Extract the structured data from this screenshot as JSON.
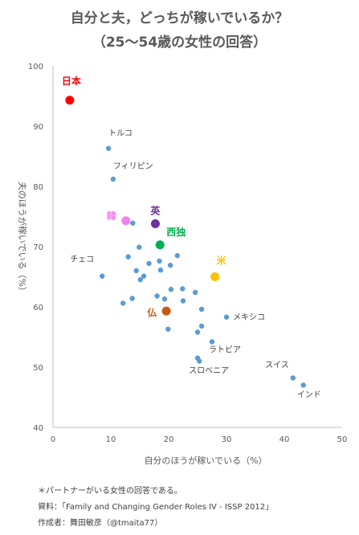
{
  "title": "自分と夫，どっちが稼いでいるか？",
  "subtitle": "（25～54歳の女性の回答）",
  "chart_data": {
    "type": "scatter",
    "title": "自分と夫，どっちが稼いでいるか？",
    "subtitle": "（25～54歳の女性の回答）",
    "xlabel": "自分のほうが稼いでいる（%）",
    "ylabel": "夫のほうが稼いでいる（%）",
    "xlim": [
      0,
      50
    ],
    "ylim": [
      40,
      100
    ],
    "xticks": [
      0,
      10,
      20,
      30,
      40,
      50
    ],
    "yticks": [
      40,
      50,
      60,
      70,
      80,
      90,
      100
    ],
    "grid": false,
    "default_color": "#5b9bd5",
    "points": [
      {
        "x": 2.9,
        "y": 94.3,
        "color": "#ff0000",
        "label": "日本",
        "highlight": true
      },
      {
        "x": 17.7,
        "y": 73.8,
        "color": "#7030a0",
        "label": "英",
        "highlight": true
      },
      {
        "x": 12.6,
        "y": 74.3,
        "color": "#ee82ee",
        "label": "韓",
        "highlight": true
      },
      {
        "x": 18.5,
        "y": 70.3,
        "color": "#00b050",
        "label": "西独",
        "highlight": true
      },
      {
        "x": 28.0,
        "y": 65.0,
        "color": "#ffc000",
        "label": "米",
        "highlight": true
      },
      {
        "x": 19.6,
        "y": 59.3,
        "color": "#c55a11",
        "label": "仏",
        "highlight": true
      },
      {
        "x": 9.6,
        "y": 86.3,
        "label": "トルコ"
      },
      {
        "x": 10.4,
        "y": 81.2,
        "label": "フィリピン"
      },
      {
        "x": 8.5,
        "y": 65.1,
        "label": "チェコ"
      },
      {
        "x": 30.0,
        "y": 58.3,
        "label": "メキシコ"
      },
      {
        "x": 27.5,
        "y": 54.2,
        "label": "ラトビア"
      },
      {
        "x": 25.3,
        "y": 51.0,
        "label": "スロベニア"
      },
      {
        "x": 41.5,
        "y": 48.2,
        "label": "スイス"
      },
      {
        "x": 43.3,
        "y": 47.0,
        "label": "インド"
      },
      {
        "x": 13.8,
        "y": 73.9
      },
      {
        "x": 14.9,
        "y": 69.9
      },
      {
        "x": 13.0,
        "y": 68.3
      },
      {
        "x": 21.5,
        "y": 68.5
      },
      {
        "x": 16.6,
        "y": 67.2
      },
      {
        "x": 18.4,
        "y": 67.6
      },
      {
        "x": 20.3,
        "y": 66.9
      },
      {
        "x": 14.4,
        "y": 66.0
      },
      {
        "x": 18.6,
        "y": 66.1
      },
      {
        "x": 15.7,
        "y": 65.1
      },
      {
        "x": 15.1,
        "y": 64.5
      },
      {
        "x": 20.4,
        "y": 62.9
      },
      {
        "x": 22.4,
        "y": 63.0
      },
      {
        "x": 24.6,
        "y": 62.4
      },
      {
        "x": 18.0,
        "y": 61.8
      },
      {
        "x": 19.3,
        "y": 61.3
      },
      {
        "x": 13.7,
        "y": 61.4
      },
      {
        "x": 22.5,
        "y": 61.0
      },
      {
        "x": 12.1,
        "y": 60.6
      },
      {
        "x": 25.7,
        "y": 59.6
      },
      {
        "x": 19.9,
        "y": 56.3
      },
      {
        "x": 25.7,
        "y": 56.8
      },
      {
        "x": 25.0,
        "y": 55.8
      },
      {
        "x": 25.0,
        "y": 51.5
      }
    ]
  },
  "notes": [
    "＊パートナーがいる女性の回答である。",
    "資料：「Family and Changing Gender Roles IV - ISSP 2012」",
    "作成者：舞田敏彦（@tmaita77）"
  ]
}
